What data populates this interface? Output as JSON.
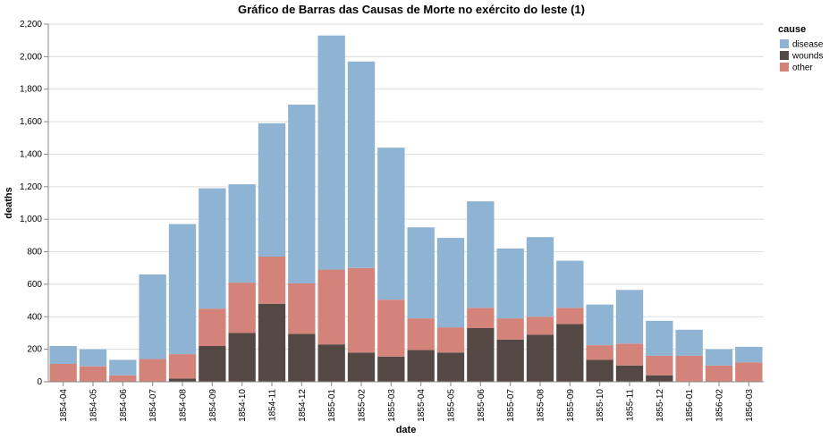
{
  "chart_data": {
    "type": "bar",
    "stacked": true,
    "title": "Gráfico de Barras das Causas de Morte no exército do leste (1)",
    "xlabel": "date",
    "ylabel": "deaths",
    "ylim": [
      0,
      2200
    ],
    "yticks": [
      0,
      200,
      400,
      600,
      800,
      1000,
      1200,
      1400,
      1600,
      1800,
      2000,
      2200
    ],
    "ytick_labels": [
      "0",
      "200",
      "400",
      "600",
      "800",
      "1,000",
      "1,200",
      "1,400",
      "1,600",
      "1,800",
      "2,000",
      "2,200"
    ],
    "grid": true,
    "legend": {
      "title": "cause",
      "position": "top-right"
    },
    "categories": [
      "1854-04",
      "1854-05",
      "1854-06",
      "1854-07",
      "1854-08",
      "1854-09",
      "1854-10",
      "1854-11",
      "1854-12",
      "1855-01",
      "1855-02",
      "1855-03",
      "1855-04",
      "1855-05",
      "1855-06",
      "1855-07",
      "1855-08",
      "1855-09",
      "1855-10",
      "1855-11",
      "1855-12",
      "1856-01",
      "1856-02",
      "1856-03"
    ],
    "series": [
      {
        "name": "wounds",
        "color": "#544845",
        "values": [
          0,
          0,
          0,
          0,
          20,
          220,
          300,
          480,
          295,
          230,
          180,
          155,
          195,
          180,
          330,
          260,
          290,
          355,
          135,
          100,
          40,
          0,
          0,
          0
        ]
      },
      {
        "name": "other",
        "color": "#d3837a",
        "values": [
          110,
          95,
          40,
          140,
          150,
          230,
          310,
          290,
          310,
          460,
          520,
          350,
          195,
          155,
          125,
          130,
          110,
          100,
          90,
          135,
          120,
          160,
          100,
          120
        ]
      },
      {
        "name": "disease",
        "color": "#8fb3d3",
        "values": [
          110,
          105,
          95,
          520,
          800,
          740,
          605,
          820,
          1100,
          1440,
          1270,
          935,
          560,
          550,
          655,
          430,
          490,
          290,
          250,
          330,
          215,
          160,
          100,
          95
        ]
      }
    ],
    "legend_order": [
      "disease",
      "wounds",
      "other"
    ]
  }
}
